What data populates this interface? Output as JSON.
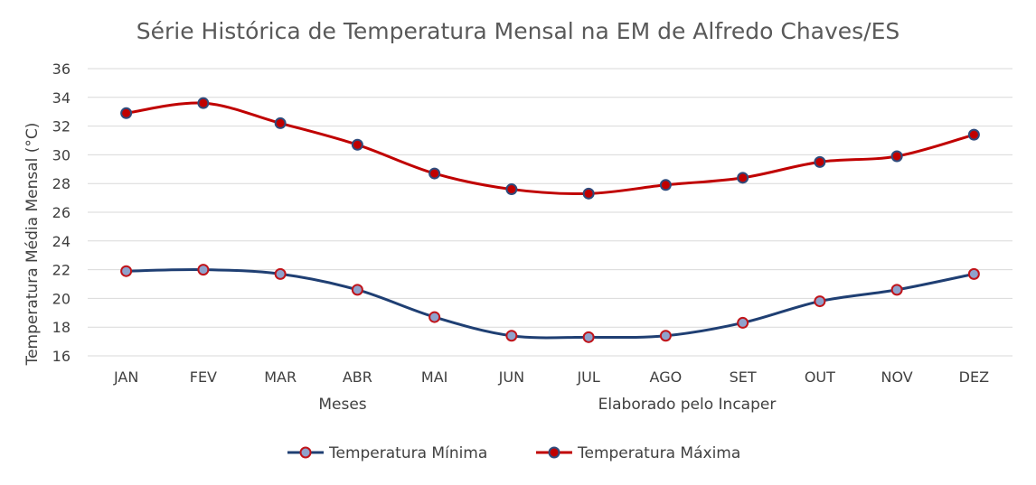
{
  "chart_data": {
    "type": "line",
    "title": "Série Histórica de Temperatura Mensal na EM de Alfredo Chaves/ES",
    "xlabel": "Meses",
    "ylabel": "Temperatura Média Mensal (°C)",
    "annotation": "Elaborado pelo Incaper",
    "categories": [
      "JAN",
      "FEV",
      "MAR",
      "ABR",
      "MAI",
      "JUN",
      "JUL",
      "AGO",
      "SET",
      "OUT",
      "NOV",
      "DEZ"
    ],
    "ylim": [
      16,
      36
    ],
    "yticks": [
      16,
      18,
      20,
      22,
      24,
      26,
      28,
      30,
      32,
      34,
      36
    ],
    "grid": true,
    "legend_position": "bottom",
    "series": [
      {
        "name": "Temperatura Mínima",
        "values": [
          21.9,
          22.0,
          21.7,
          20.6,
          18.7,
          17.4,
          17.3,
          17.4,
          18.3,
          19.8,
          20.6,
          21.7
        ],
        "line_color": "#1f3f73",
        "marker_fill": "#8fa2cc",
        "marker_edge": "#c0141a"
      },
      {
        "name": "Temperatura Máxima",
        "values": [
          32.9,
          33.6,
          32.2,
          30.7,
          28.7,
          27.6,
          27.3,
          27.9,
          28.4,
          29.5,
          29.9,
          31.4
        ],
        "line_color": "#c00000",
        "marker_fill": "#c00000",
        "marker_edge": "#2f4b7c"
      }
    ]
  }
}
